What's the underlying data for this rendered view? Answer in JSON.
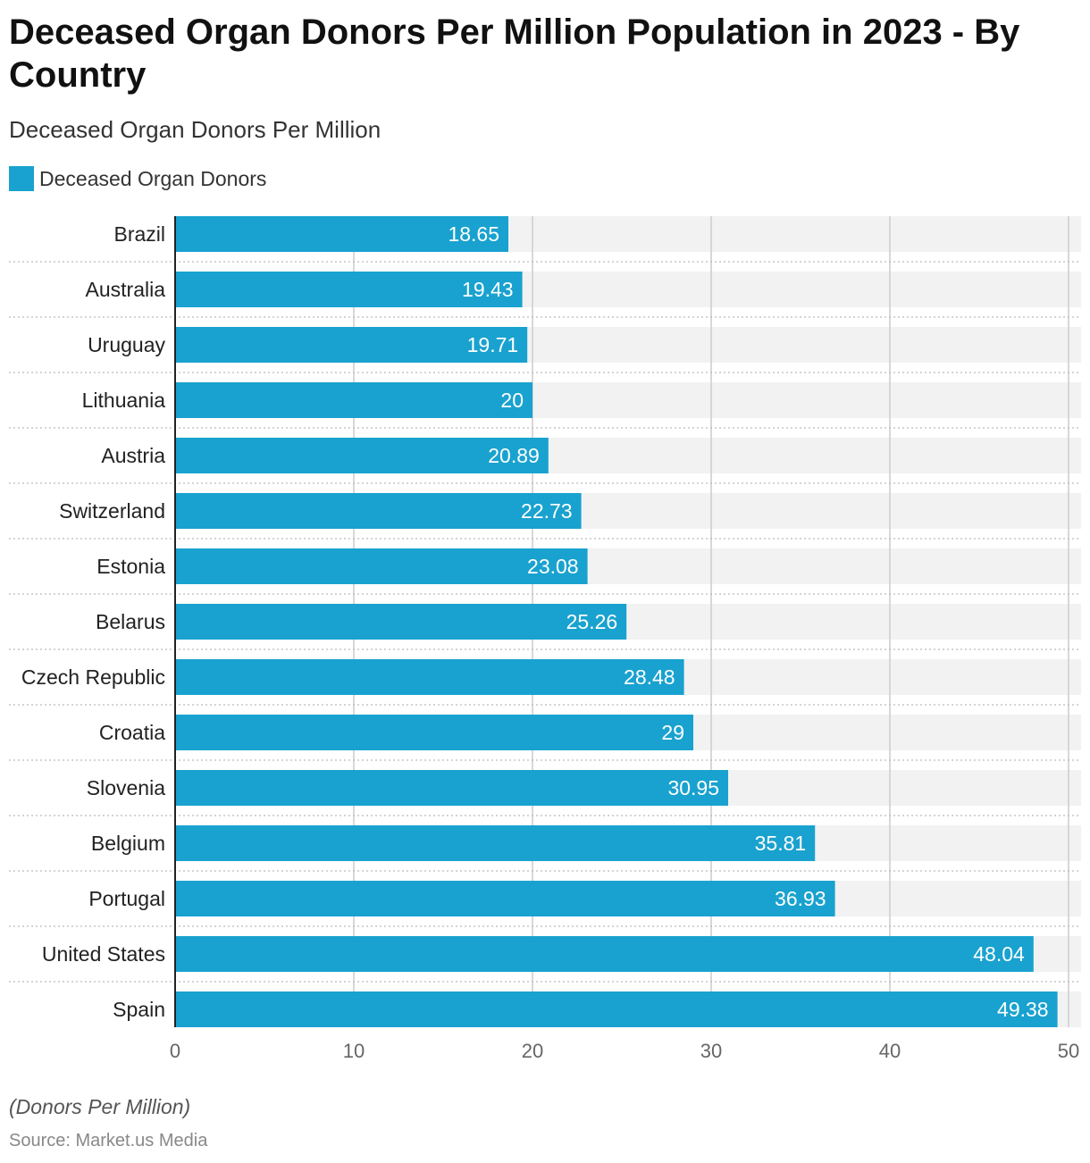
{
  "chart_data": {
    "type": "bar",
    "orientation": "horizontal",
    "title": "Deceased Organ Donors Per Million Population in 2023 - By Country",
    "subtitle": "Deceased Organ Donors Per Million",
    "legend": {
      "label": "Deceased Organ Donors",
      "placement": "top-left"
    },
    "categories": [
      "Brazil",
      "Australia",
      "Uruguay",
      "Lithuania",
      "Austria",
      "Switzerland",
      "Estonia",
      "Belarus",
      "Czech Republic",
      "Croatia",
      "Slovenia",
      "Belgium",
      "Portugal",
      "United States",
      "Spain"
    ],
    "values": [
      18.65,
      19.43,
      19.71,
      20,
      20.89,
      22.73,
      23.08,
      25.26,
      28.48,
      29,
      30.95,
      35.81,
      36.93,
      48.04,
      49.38
    ],
    "value_labels": [
      "18.65",
      "19.43",
      "19.71",
      "20",
      "20.89",
      "22.73",
      "23.08",
      "25.26",
      "28.48",
      "29",
      "30.95",
      "35.81",
      "36.93",
      "48.04",
      "49.38"
    ],
    "xlim": [
      0,
      50
    ],
    "x_ticks": [
      0,
      10,
      20,
      30,
      40,
      50
    ],
    "grid": true,
    "unit_note": "(Donors Per Million)",
    "source": "Source: Market.us Media",
    "colors": {
      "bar": "#19a2cf",
      "track": "#f2f2f2",
      "grid": "#cccccc",
      "axis": "#222222"
    }
  }
}
